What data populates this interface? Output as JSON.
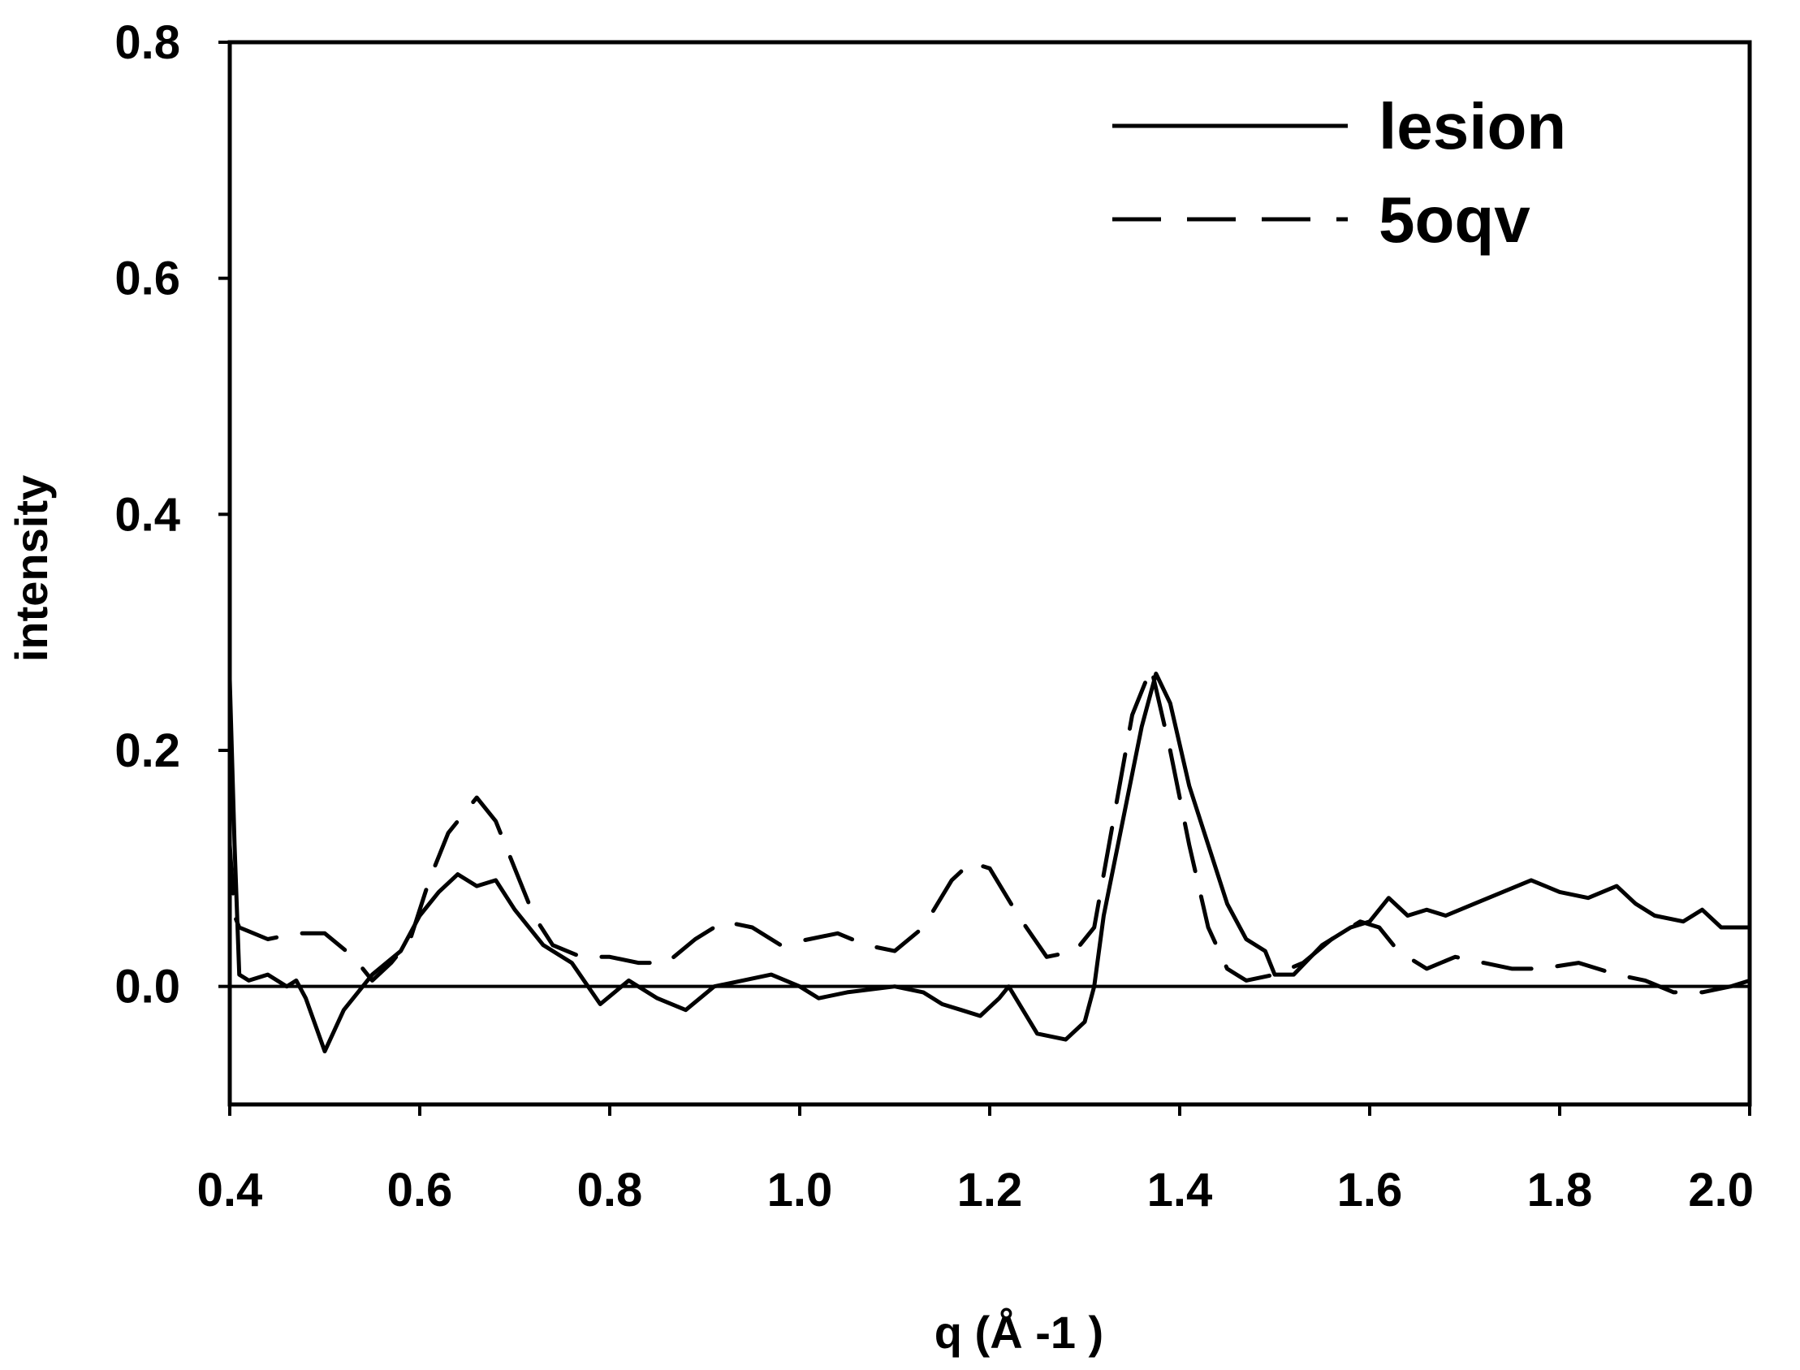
{
  "chart_data": {
    "type": "line",
    "title": "",
    "xlabel": "q (Å -1 )",
    "ylabel": "intensity",
    "xlim": [
      0.4,
      2.0
    ],
    "ylim": [
      -0.1,
      0.8
    ],
    "xticks": [
      "0.4",
      "0.6",
      "0.8",
      "1.0",
      "1.2",
      "1.4",
      "1.6",
      "1.8",
      "2.0"
    ],
    "yticks": [
      "0.0",
      "0.2",
      "0.4",
      "0.6",
      "0.8"
    ],
    "grid": false,
    "legend_position": "top-right",
    "zero_line": true,
    "series": [
      {
        "name": "lesion",
        "style": "solid",
        "color": "#000000",
        "points": [
          [
            0.4,
            0.26
          ],
          [
            0.405,
            0.12
          ],
          [
            0.41,
            0.01
          ],
          [
            0.42,
            0.005
          ],
          [
            0.44,
            0.01
          ],
          [
            0.46,
            0.0
          ],
          [
            0.47,
            0.005
          ],
          [
            0.48,
            -0.01
          ],
          [
            0.5,
            -0.055
          ],
          [
            0.52,
            -0.02
          ],
          [
            0.55,
            0.01
          ],
          [
            0.58,
            0.03
          ],
          [
            0.6,
            0.06
          ],
          [
            0.62,
            0.08
          ],
          [
            0.64,
            0.095
          ],
          [
            0.66,
            0.085
          ],
          [
            0.68,
            0.09
          ],
          [
            0.7,
            0.065
          ],
          [
            0.73,
            0.035
          ],
          [
            0.76,
            0.02
          ],
          [
            0.79,
            -0.015
          ],
          [
            0.82,
            0.005
          ],
          [
            0.85,
            -0.01
          ],
          [
            0.88,
            -0.02
          ],
          [
            0.91,
            0.0
          ],
          [
            0.94,
            0.005
          ],
          [
            0.97,
            0.01
          ],
          [
            1.0,
            0.0
          ],
          [
            1.02,
            -0.01
          ],
          [
            1.05,
            -0.005
          ],
          [
            1.1,
            0.0
          ],
          [
            1.13,
            -0.005
          ],
          [
            1.15,
            -0.015
          ],
          [
            1.17,
            -0.02
          ],
          [
            1.19,
            -0.025
          ],
          [
            1.21,
            -0.01
          ],
          [
            1.22,
            0.0
          ],
          [
            1.25,
            -0.04
          ],
          [
            1.28,
            -0.045
          ],
          [
            1.3,
            -0.03
          ],
          [
            1.31,
            0.0
          ],
          [
            1.32,
            0.06
          ],
          [
            1.34,
            0.14
          ],
          [
            1.36,
            0.22
          ],
          [
            1.375,
            0.265
          ],
          [
            1.39,
            0.24
          ],
          [
            1.41,
            0.17
          ],
          [
            1.43,
            0.12
          ],
          [
            1.45,
            0.07
          ],
          [
            1.47,
            0.04
          ],
          [
            1.49,
            0.03
          ],
          [
            1.5,
            0.01
          ],
          [
            1.52,
            0.01
          ],
          [
            1.55,
            0.035
          ],
          [
            1.58,
            0.05
          ],
          [
            1.6,
            0.055
          ],
          [
            1.62,
            0.075
          ],
          [
            1.64,
            0.06
          ],
          [
            1.66,
            0.065
          ],
          [
            1.68,
            0.06
          ],
          [
            1.71,
            0.07
          ],
          [
            1.74,
            0.08
          ],
          [
            1.77,
            0.09
          ],
          [
            1.8,
            0.08
          ],
          [
            1.83,
            0.075
          ],
          [
            1.86,
            0.085
          ],
          [
            1.88,
            0.07
          ],
          [
            1.9,
            0.06
          ],
          [
            1.93,
            0.055
          ],
          [
            1.95,
            0.065
          ],
          [
            1.97,
            0.05
          ],
          [
            2.0,
            0.05
          ]
        ]
      },
      {
        "name": "5oqv",
        "style": "dashed",
        "color": "#000000",
        "points": [
          [
            0.4,
            0.12
          ],
          [
            0.405,
            0.06
          ],
          [
            0.41,
            0.05
          ],
          [
            0.44,
            0.04
          ],
          [
            0.47,
            0.045
          ],
          [
            0.5,
            0.045
          ],
          [
            0.53,
            0.025
          ],
          [
            0.55,
            0.005
          ],
          [
            0.57,
            0.02
          ],
          [
            0.59,
            0.04
          ],
          [
            0.61,
            0.09
          ],
          [
            0.63,
            0.13
          ],
          [
            0.66,
            0.16
          ],
          [
            0.68,
            0.14
          ],
          [
            0.7,
            0.1
          ],
          [
            0.72,
            0.06
          ],
          [
            0.74,
            0.035
          ],
          [
            0.77,
            0.025
          ],
          [
            0.8,
            0.025
          ],
          [
            0.83,
            0.02
          ],
          [
            0.86,
            0.02
          ],
          [
            0.89,
            0.04
          ],
          [
            0.92,
            0.055
          ],
          [
            0.95,
            0.05
          ],
          [
            0.98,
            0.035
          ],
          [
            1.01,
            0.04
          ],
          [
            1.04,
            0.045
          ],
          [
            1.07,
            0.035
          ],
          [
            1.1,
            0.03
          ],
          [
            1.13,
            0.05
          ],
          [
            1.16,
            0.09
          ],
          [
            1.18,
            0.105
          ],
          [
            1.2,
            0.1
          ],
          [
            1.23,
            0.06
          ],
          [
            1.26,
            0.025
          ],
          [
            1.29,
            0.03
          ],
          [
            1.31,
            0.05
          ],
          [
            1.33,
            0.14
          ],
          [
            1.35,
            0.23
          ],
          [
            1.37,
            0.27
          ],
          [
            1.39,
            0.2
          ],
          [
            1.41,
            0.12
          ],
          [
            1.43,
            0.05
          ],
          [
            1.45,
            0.015
          ],
          [
            1.47,
            0.005
          ],
          [
            1.5,
            0.01
          ],
          [
            1.53,
            0.02
          ],
          [
            1.56,
            0.04
          ],
          [
            1.59,
            0.055
          ],
          [
            1.61,
            0.05
          ],
          [
            1.63,
            0.03
          ],
          [
            1.66,
            0.015
          ],
          [
            1.69,
            0.025
          ],
          [
            1.72,
            0.02
          ],
          [
            1.75,
            0.015
          ],
          [
            1.78,
            0.015
          ],
          [
            1.82,
            0.02
          ],
          [
            1.86,
            0.01
          ],
          [
            1.89,
            0.005
          ],
          [
            1.92,
            -0.005
          ],
          [
            1.95,
            -0.005
          ],
          [
            1.98,
            0.0
          ],
          [
            2.0,
            0.005
          ]
        ]
      }
    ]
  }
}
